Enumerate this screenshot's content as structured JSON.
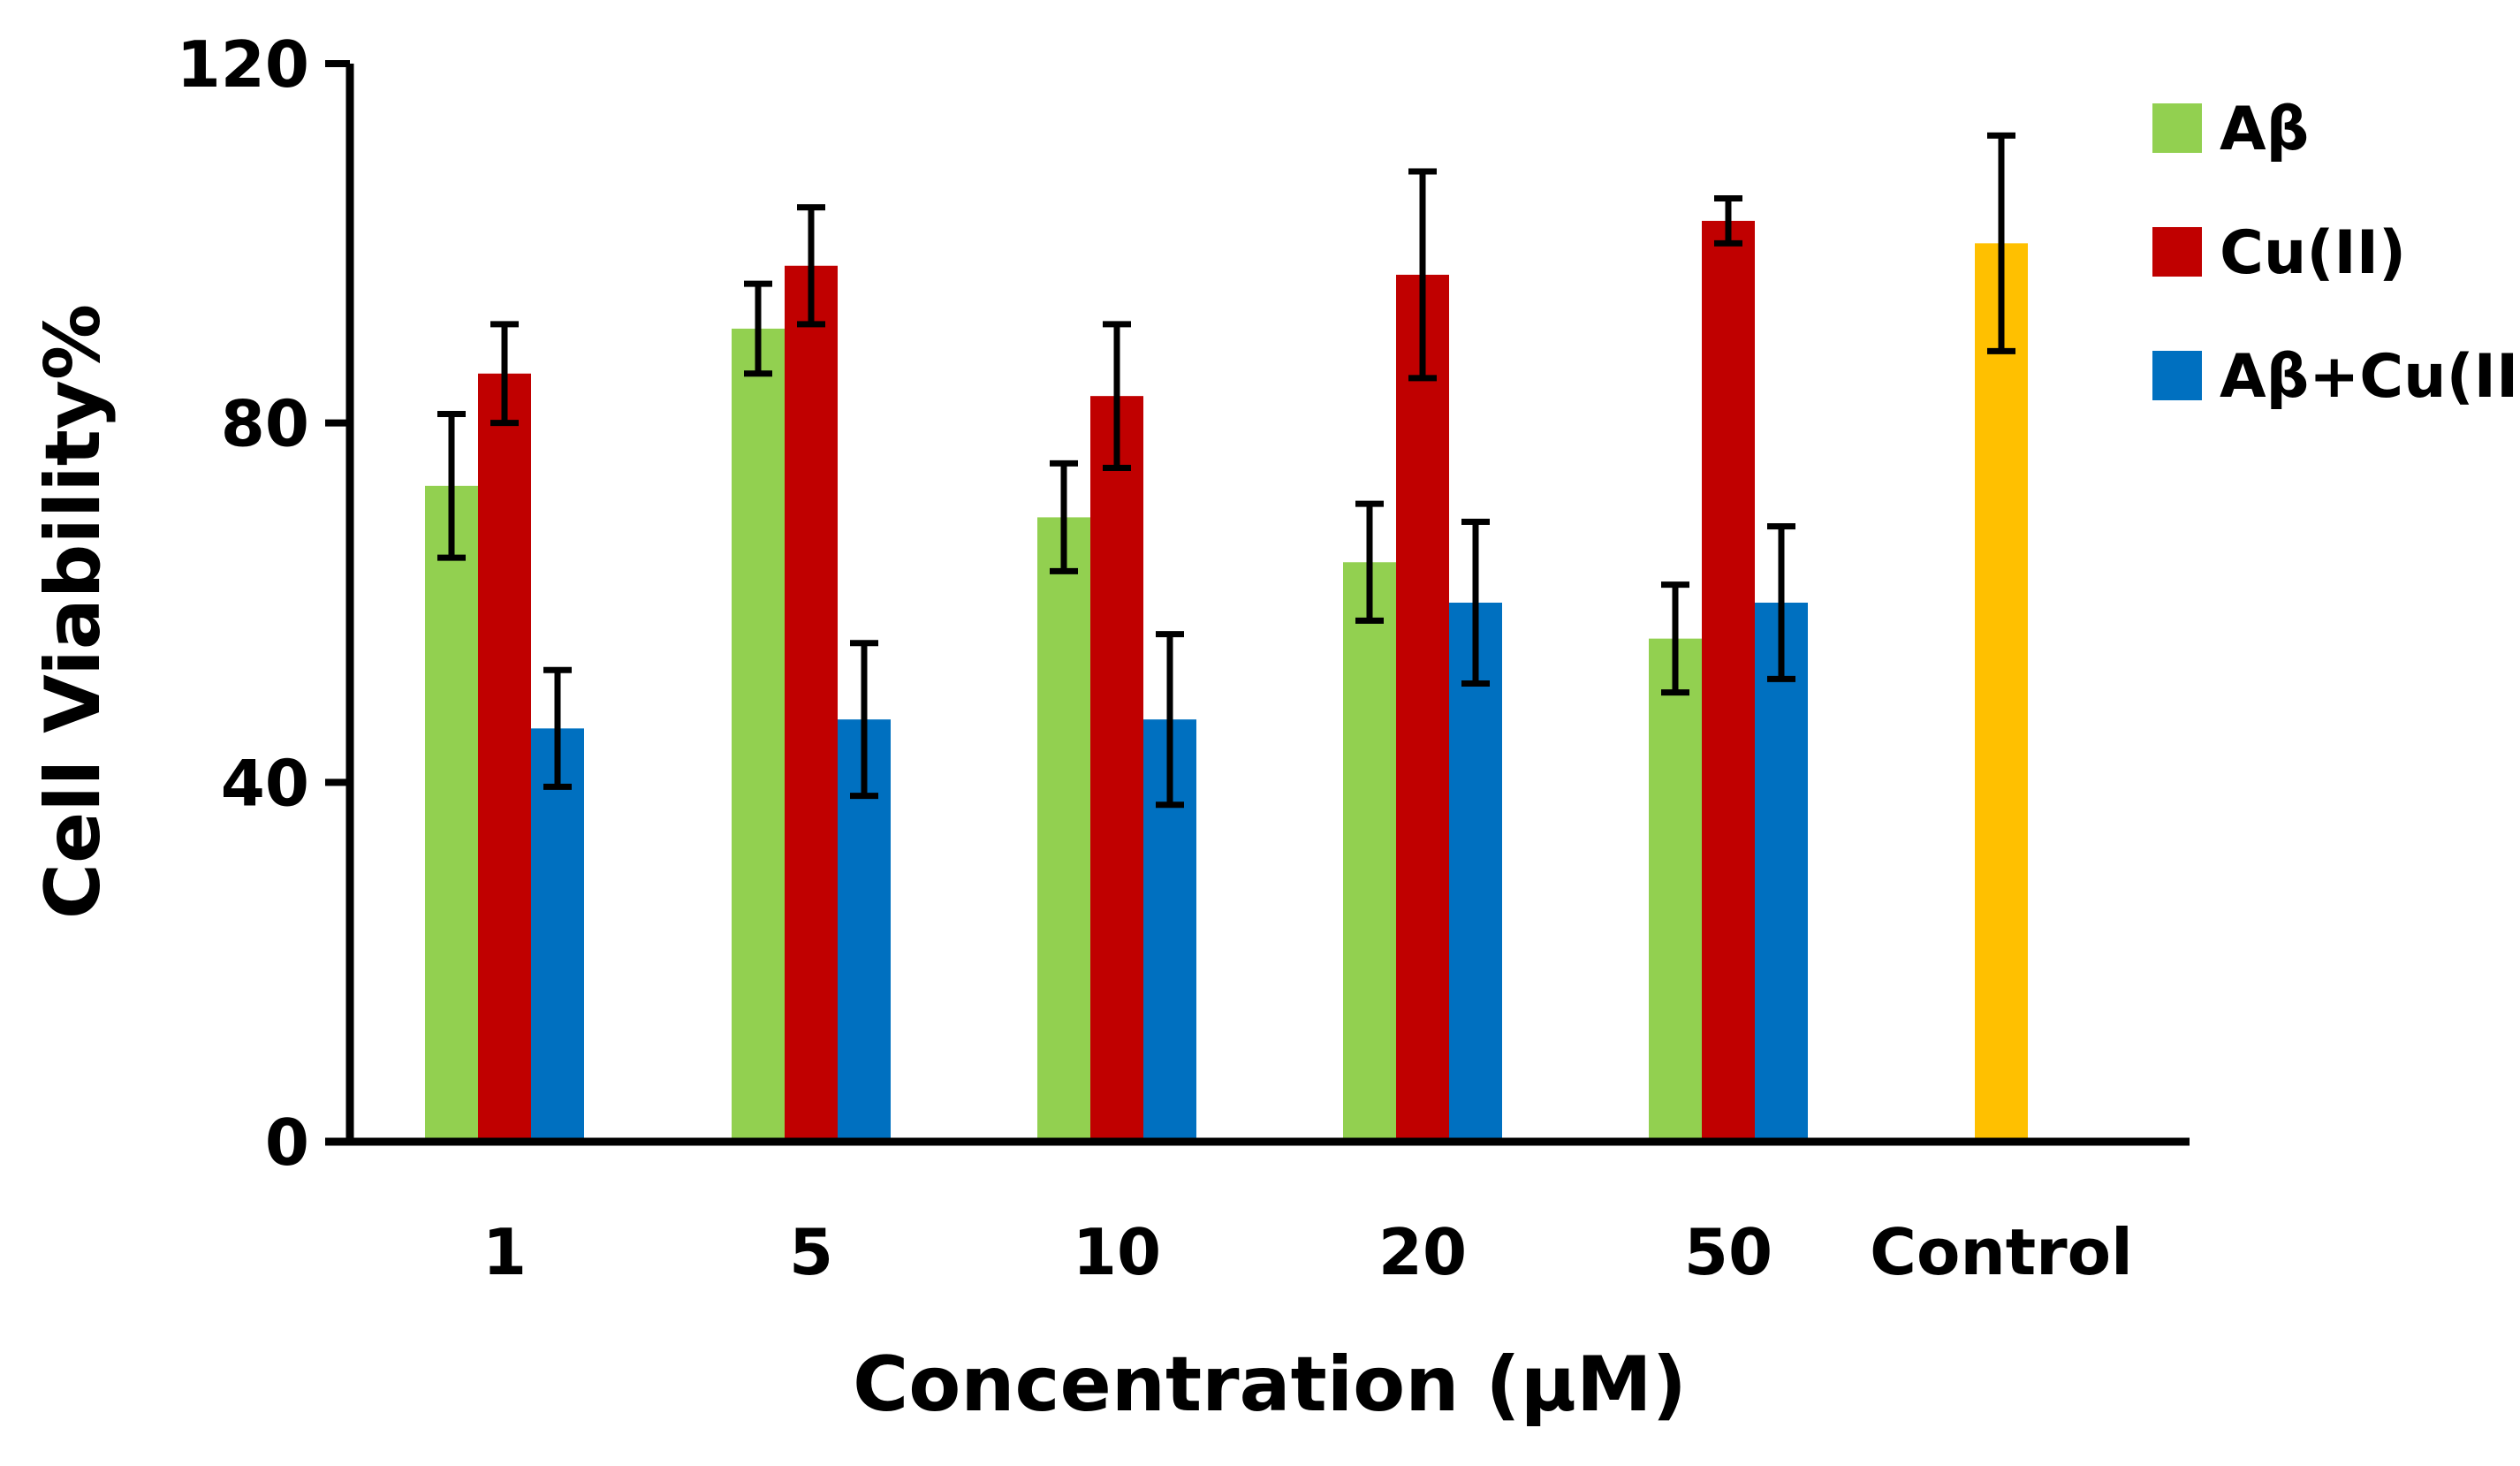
{
  "chart_data": {
    "type": "bar",
    "title": "",
    "xlabel": "Concentration (μM)",
    "ylabel": "Cell Viability%",
    "ylim": [
      0,
      120
    ],
    "yticks": [
      0,
      40,
      80,
      120
    ],
    "categories": [
      "1",
      "5",
      "10",
      "20",
      "50",
      "Control"
    ],
    "legend_position": "top-right",
    "series": [
      {
        "name": "Aβ",
        "color": "#92D050",
        "values": [
          73,
          90.5,
          69.5,
          64.5,
          56,
          null
        ],
        "errors": [
          8,
          5,
          6,
          6.5,
          6,
          null
        ]
      },
      {
        "name": "Cu(II)",
        "color": "#C00000",
        "values": [
          85.5,
          97.5,
          83,
          96.5,
          102.5,
          null
        ],
        "errors": [
          5.5,
          6.5,
          8,
          11.5,
          2.5,
          null
        ]
      },
      {
        "name": "Aβ+Cu(II)",
        "color": "#0070C0",
        "values": [
          46,
          47,
          47,
          60,
          60,
          null
        ],
        "errors": [
          6.5,
          8.5,
          9.5,
          9,
          8.5,
          null
        ]
      },
      {
        "name": "Control",
        "color": "#FFC000",
        "values": [
          null,
          null,
          null,
          null,
          null,
          100
        ],
        "errors": [
          null,
          null,
          null,
          null,
          null,
          12
        ],
        "in_legend": false
      }
    ]
  }
}
